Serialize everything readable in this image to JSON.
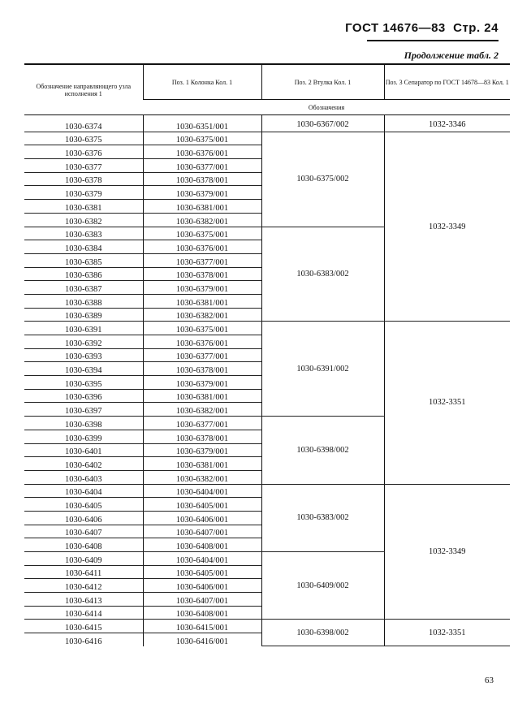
{
  "header": {
    "standard": "ГОСТ 14676—83",
    "page_label": "Стр. 24",
    "continuation": "Продолжение табл. 2"
  },
  "table": {
    "columns": [
      "Обозначение направляющего узла исполнения 1",
      "Поз. 1 Колонка Кол. 1",
      "Поз. 2 Втулка Кол. 1",
      "Поз. 3 Сепаратор по ГОСТ 14678—83 Кол. 1"
    ],
    "subheader": "Обозначения",
    "col1": [
      "1030-6374",
      "1030-6375",
      "1030-6376",
      "1030-6377",
      "1030-6378",
      "1030-6379",
      "1030-6381",
      "1030-6382",
      "1030-6383",
      "1030-6384",
      "1030-6385",
      "1030-6386",
      "1030-6387",
      "1030-6388",
      "1030-6389",
      "1030-6391",
      "1030-6392",
      "1030-6393",
      "1030-6394",
      "1030-6395",
      "1030-6396",
      "1030-6397",
      "1030-6398",
      "1030-6399",
      "1030-6401",
      "1030-6402",
      "1030-6403",
      "1030-6404",
      "1030-6405",
      "1030-6406",
      "1030-6407",
      "1030-6408",
      "1030-6409",
      "1030-6411",
      "1030-6412",
      "1030-6413",
      "1030-6414",
      "1030-6415",
      "1030-6416"
    ],
    "col2": [
      "1030-6351/001",
      "1030-6375/001",
      "1030-6376/001",
      "1030-6377/001",
      "1030-6378/001",
      "1030-6379/001",
      "1030-6381/001",
      "1030-6382/001",
      "1030-6375/001",
      "1030-6376/001",
      "1030-6377/001",
      "1030-6378/001",
      "1030-6379/001",
      "1030-6381/001",
      "1030-6382/001",
      "1030-6375/001",
      "1030-6376/001",
      "1030-6377/001",
      "1030-6378/001",
      "1030-6379/001",
      "1030-6381/001",
      "1030-6382/001",
      "1030-6377/001",
      "1030-6378/001",
      "1030-6379/001",
      "1030-6381/001",
      "1030-6382/001",
      "1030-6404/001",
      "1030-6405/001",
      "1030-6406/001",
      "1030-6407/001",
      "1030-6408/001",
      "1030-6404/001",
      "1030-6405/001",
      "1030-6406/001",
      "1030-6407/001",
      "1030-6408/001",
      "1030-6415/001",
      "1030-6416/001"
    ],
    "col3_groups": [
      {
        "value": "1030-6367/002",
        "rows": 1
      },
      {
        "value": "1030-6375/002",
        "rows": 7
      },
      {
        "value": "1030-6383/002",
        "rows": 7
      },
      {
        "value": "1030-6391/002",
        "rows": 7
      },
      {
        "value": "1030-6398/002",
        "rows": 5
      },
      {
        "value": "1030-6383/002",
        "rows": 5
      },
      {
        "value": "1030-6409/002",
        "rows": 5
      },
      {
        "value": "1030-6398/002",
        "rows": 2
      }
    ],
    "col4_groups": [
      {
        "value": "1032-3346",
        "rows": 1
      },
      {
        "value": "1032-3349",
        "rows": 14
      },
      {
        "value": "1032-3351",
        "rows": 12
      },
      {
        "value": "1032-3349",
        "rows": 10
      },
      {
        "value": "1032-3351",
        "rows": 2
      }
    ]
  },
  "footer": {
    "page_number": "63"
  }
}
